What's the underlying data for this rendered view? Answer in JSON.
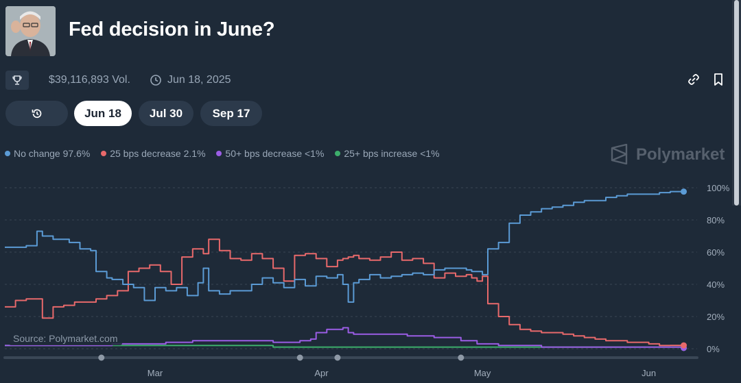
{
  "header": {
    "title": "Fed decision in June?",
    "avatar_icon": "portrait-image"
  },
  "meta": {
    "trophy_icon": "trophy-icon",
    "volume": "$39,116,893 Vol.",
    "clock_icon": "clock-icon",
    "date": "Jun 18, 2025",
    "link_icon": "link-icon",
    "bookmark_icon": "bookmark-icon"
  },
  "tabs": [
    {
      "label": "",
      "icon": "history-icon",
      "active": false
    },
    {
      "label": "Jun 18",
      "active": true
    },
    {
      "label": "Jul 30",
      "active": false
    },
    {
      "label": "Sep 17",
      "active": false
    }
  ],
  "legend": [
    {
      "label": "No change 97.6%",
      "color": "#5b9bd5"
    },
    {
      "label": "25 bps decrease 2.1%",
      "color": "#e8696b"
    },
    {
      "label": "50+ bps decrease <1%",
      "color": "#9b5de5"
    },
    {
      "label": "25+ bps increase <1%",
      "color": "#3dae6b"
    }
  ],
  "brand": "Polymarket",
  "source": "Source: Polymarket.com",
  "chart_data": {
    "type": "line",
    "x_ticks": [
      "Mar",
      "Apr",
      "May",
      "Jun"
    ],
    "x_tick_days": [
      28,
      59,
      89,
      120
    ],
    "xlim_days": [
      0,
      129
    ],
    "y_ticks": [
      "100%",
      "80%",
      "60%",
      "40%",
      "20%",
      "0%"
    ],
    "ylim": [
      0,
      100
    ],
    "grid": true,
    "legend_position": "top-left",
    "series": [
      {
        "name": "No change",
        "color": "#5b9bd5",
        "x": [
          0,
          4,
          6,
          7,
          9,
          12,
          14,
          16,
          17,
          19,
          20,
          22,
          24,
          26,
          28,
          30,
          32,
          34,
          36,
          37,
          38,
          40,
          42,
          44,
          46,
          48,
          50,
          52,
          54,
          56,
          58,
          60,
          62,
          63,
          64,
          65,
          66,
          68,
          70,
          72,
          74,
          76,
          78,
          80,
          82,
          84,
          86,
          87,
          88,
          89,
          90,
          92,
          94,
          96,
          98,
          100,
          102,
          104,
          106,
          108,
          110,
          112,
          114,
          116,
          118,
          120,
          122,
          124,
          126
        ],
        "y": [
          63,
          64,
          73,
          70,
          68,
          66,
          62,
          61,
          48,
          44,
          43,
          40,
          38,
          30,
          38,
          36,
          38,
          33,
          41,
          50,
          36,
          34,
          36,
          36,
          40,
          44,
          41,
          38,
          43,
          39,
          45,
          44,
          46,
          40,
          29,
          41,
          43,
          46,
          44,
          45,
          46,
          47,
          46,
          49,
          50,
          50,
          49,
          48,
          48,
          46,
          62,
          66,
          78,
          83,
          85,
          87,
          88,
          89,
          91,
          92,
          92,
          94,
          95,
          96,
          96,
          96,
          97,
          97.6,
          97.6
        ]
      },
      {
        "name": "25 bps decrease",
        "color": "#e8696b",
        "x": [
          0,
          2,
          4,
          6,
          7,
          9,
          11,
          13,
          15,
          17,
          19,
          21,
          23,
          25,
          27,
          29,
          31,
          33,
          35,
          37,
          38,
          40,
          42,
          44,
          46,
          48,
          50,
          52,
          54,
          56,
          58,
          60,
          62,
          63,
          64,
          65,
          66,
          68,
          70,
          72,
          74,
          76,
          78,
          80,
          82,
          84,
          86,
          87,
          88,
          89,
          90,
          92,
          94,
          96,
          98,
          100,
          102,
          104,
          106,
          108,
          110,
          112,
          114,
          116,
          118,
          120,
          122,
          124,
          126
        ],
        "y": [
          26,
          30,
          31,
          31,
          19,
          26,
          27,
          29,
          29,
          31,
          33,
          36,
          48,
          50,
          52,
          48,
          40,
          57,
          62,
          59,
          68,
          61,
          56,
          55,
          59,
          56,
          50,
          42,
          58,
          59,
          56,
          51,
          55,
          56,
          57,
          58,
          56,
          55,
          57,
          60,
          55,
          56,
          53,
          44,
          47,
          45,
          46,
          44,
          42,
          45,
          28,
          20,
          15,
          12,
          11,
          10,
          10,
          9,
          8,
          7,
          6,
          5,
          5,
          4,
          4,
          3,
          2,
          2.1,
          2.1
        ]
      },
      {
        "name": "50+ bps decrease",
        "color": "#9b5de5",
        "x": [
          0,
          10,
          20,
          28,
          30,
          35,
          40,
          45,
          50,
          55,
          57,
          58,
          59,
          60,
          62,
          63,
          64,
          65,
          70,
          75,
          80,
          85,
          88,
          92,
          96,
          100,
          110,
          120,
          126
        ],
        "y": [
          2,
          2,
          3,
          3,
          4,
          5,
          5,
          5,
          4,
          5,
          6,
          10,
          10,
          12,
          12,
          13,
          10,
          9,
          9,
          8,
          7,
          5,
          3,
          2,
          2,
          1,
          1,
          1,
          0.5
        ]
      },
      {
        "name": "25+ bps increase",
        "color": "#3dae6b",
        "x": [
          0,
          10,
          20,
          30,
          40,
          50,
          60,
          70,
          80,
          90,
          100,
          110,
          120,
          126
        ],
        "y": [
          2,
          2,
          2,
          2,
          2,
          1,
          1,
          1,
          1,
          1,
          1,
          1,
          1,
          0.5
        ]
      }
    ],
    "timeline_markers": [
      18,
      55,
      62,
      85
    ]
  }
}
